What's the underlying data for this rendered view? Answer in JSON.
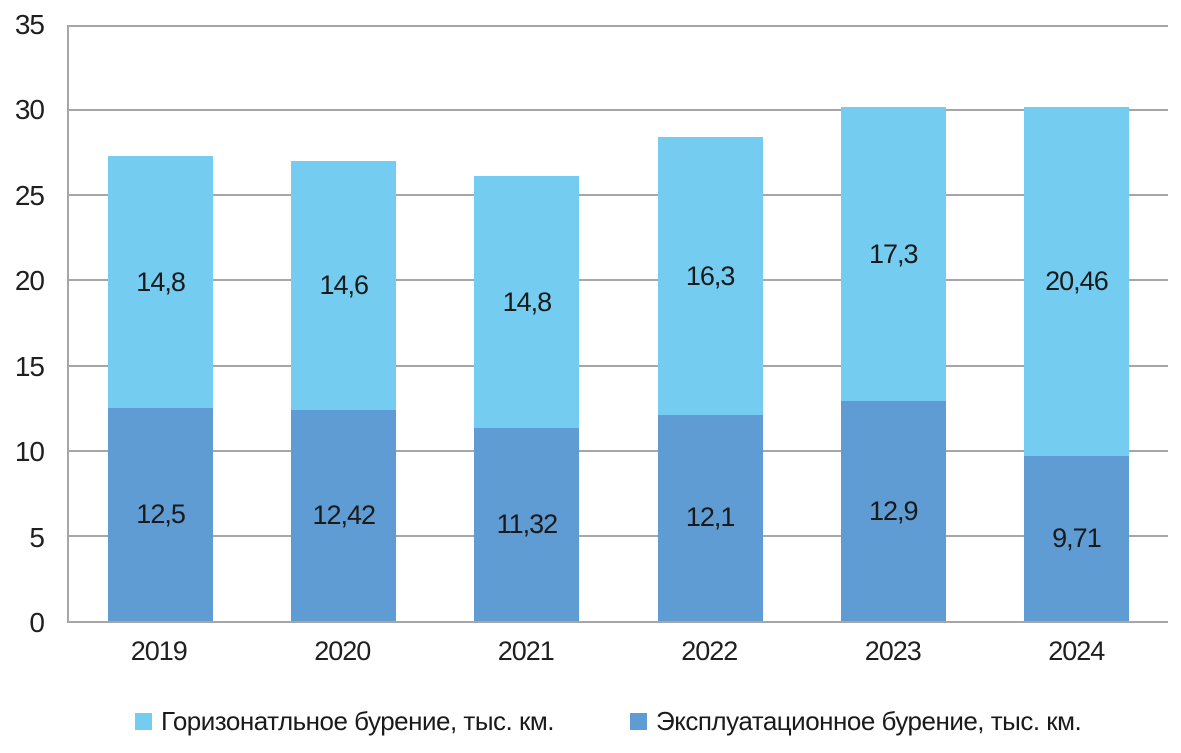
{
  "colors": {
    "horizontal_series": "#74CDF0",
    "production_series": "#5F9CD3",
    "gridline": "#A6A6A6",
    "text": "#1F1F1F",
    "background": "#FFFFFF"
  },
  "legend": {
    "items": [
      {
        "label": "Горизонатльное бурение, тыс. км.",
        "color": "#74CDF0"
      },
      {
        "label": "Эксплуатационное бурение, тыс. км.",
        "color": "#5F9CD3"
      }
    ]
  },
  "chart_data": {
    "type": "bar",
    "stacked": true,
    "title": "",
    "xlabel": "",
    "ylabel": "",
    "categories": [
      "2019",
      "2020",
      "2021",
      "2022",
      "2023",
      "2024"
    ],
    "series": [
      {
        "name": "Эксплуатационное бурение, тыс. км.",
        "color": "#5F9CD3",
        "values": [
          12.5,
          12.42,
          11.32,
          12.1,
          12.9,
          9.71
        ],
        "labels": [
          "12,5",
          "12,42",
          "11,32",
          "12,1",
          "12,9",
          "9,71"
        ]
      },
      {
        "name": "Горизонатльное бурение, тыс. км.",
        "color": "#74CDF0",
        "values": [
          14.8,
          14.6,
          14.8,
          16.3,
          17.3,
          20.46
        ],
        "labels": [
          "14,8",
          "14,6",
          "14,8",
          "16,3",
          "17,3",
          "20,46"
        ]
      }
    ],
    "totals": [
      27.3,
      27.02,
      26.12,
      28.4,
      30.2,
      30.17
    ],
    "ylim": [
      0,
      35
    ],
    "yticks": [
      0,
      5,
      10,
      15,
      20,
      25,
      30,
      35
    ],
    "grid": true,
    "legend_position": "bottom"
  }
}
